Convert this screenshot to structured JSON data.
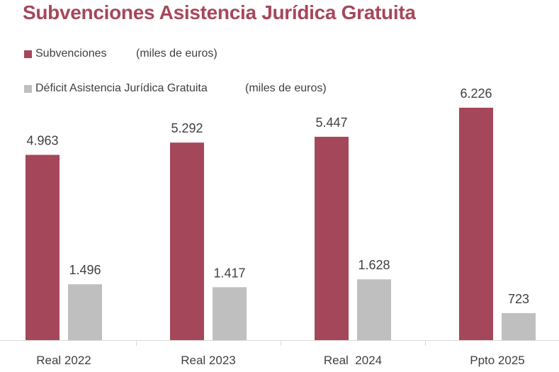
{
  "title": "Subvenciones Asistencia Jurídica Gratuita",
  "colors": {
    "title": "#a5475a",
    "subvenciones": "#a5475a",
    "deficit": "#bfbfbf",
    "text": "#404040",
    "axis": "#d9d9d9"
  },
  "legend": [
    {
      "label": "Subvenciones",
      "unit": "(miles de euros)"
    },
    {
      "label": "Déficit Asistencia Jurídica Gratuita",
      "unit": "(miles de euros)"
    }
  ],
  "chart_data": {
    "type": "bar",
    "title": "Subvenciones Asistencia Jurídica Gratuita",
    "categories": [
      "Real 2022",
      "Real 2023",
      "Real  2024",
      "Ppto 2025"
    ],
    "series": [
      {
        "name": "Subvenciones",
        "values": [
          4963,
          5292,
          5447,
          6226
        ],
        "labels": [
          "4.963",
          "5.292",
          "5.447",
          "6.226"
        ]
      },
      {
        "name": "Déficit Asistencia Jurídica Gratuita",
        "values": [
          1496,
          1417,
          1628,
          723
        ],
        "labels": [
          "1.496",
          "1.417",
          "1.628",
          "723"
        ]
      }
    ],
    "xlabel": "",
    "ylabel": "(miles de euros)",
    "ylim": [
      0,
      6226
    ],
    "grid": false,
    "legend_position": "top-left"
  }
}
